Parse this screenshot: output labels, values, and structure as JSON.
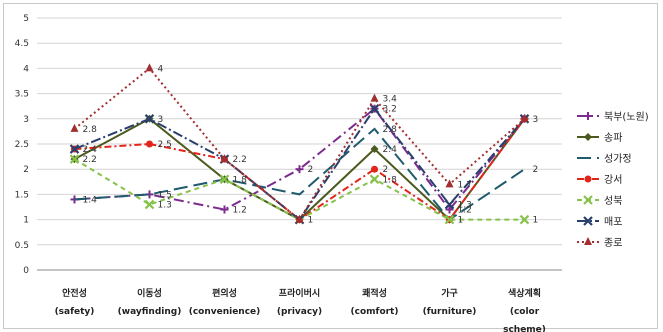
{
  "chart_data": {
    "type": "line",
    "title": "",
    "xlabel": "",
    "ylabel": "",
    "ylim": [
      0,
      5
    ],
    "yticks": [
      "0",
      "0.5",
      "1",
      "1.5",
      "2",
      "2.5",
      "3",
      "3.5",
      "4",
      "4.5",
      "5"
    ],
    "categories": [
      [
        "안전성",
        "(safety)"
      ],
      [
        "이동성",
        "(wayfinding)"
      ],
      [
        "편의성",
        "(convenience)"
      ],
      [
        "프라이버시",
        "(privacy)"
      ],
      [
        "쾌적성",
        "(comfort)"
      ],
      [
        "가구",
        "(furniture)"
      ],
      [
        "색상계획",
        "(color",
        "scheme)"
      ]
    ],
    "grid": true,
    "legend_position": "right",
    "series": [
      {
        "name": "북부(노원)",
        "values": [
          1.4,
          1.5,
          1.2,
          2,
          3.2,
          1.2,
          3
        ],
        "color": "#7b2c8e",
        "marker": "plus",
        "dash": "10,4,2,4"
      },
      {
        "name": "송파",
        "values": [
          2.2,
          3,
          1.8,
          1,
          2.4,
          1,
          3
        ],
        "color": "#4a5a1c",
        "marker": "diamond",
        "dash": ""
      },
      {
        "name": "성가정",
        "values": [
          1.4,
          1.5,
          1.8,
          1.5,
          2.8,
          1,
          2
        ],
        "color": "#1f5b6e",
        "marker": "none",
        "dash": "14,6"
      },
      {
        "name": "강서",
        "values": [
          2.4,
          2.5,
          2.2,
          1,
          2,
          1,
          3
        ],
        "color": "#e3241b",
        "marker": "circle",
        "dash": "7,3,2,3"
      },
      {
        "name": "성북",
        "values": [
          2.2,
          1.3,
          1.8,
          1,
          1.8,
          1,
          1
        ],
        "color": "#86c24a",
        "marker": "x",
        "dash": "5,4"
      },
      {
        "name": "매포",
        "values": [
          2.4,
          3,
          2.2,
          1,
          3.2,
          1.3,
          3
        ],
        "color": "#2a3f6b",
        "marker": "x",
        "dash": "10,3,2,3"
      },
      {
        "name": "종로",
        "values": [
          2.8,
          4,
          2.2,
          1,
          3.4,
          1.7,
          3
        ],
        "color": "#a12f2f",
        "marker": "triangle",
        "dash": "2,3"
      }
    ],
    "data_labels": [
      {
        "series": 0,
        "index": 0,
        "text": "1.4"
      },
      {
        "series": 1,
        "index": 0,
        "text": "2.2"
      },
      {
        "series": 5,
        "index": 0,
        "text": "2.4"
      },
      {
        "series": 6,
        "index": 0,
        "text": "2.8"
      },
      {
        "series": 0,
        "index": 1,
        "text": "1.5"
      },
      {
        "series": 4,
        "index": 1,
        "text": "1.3"
      },
      {
        "series": 3,
        "index": 1,
        "text": "2.5"
      },
      {
        "series": 5,
        "index": 1,
        "text": "3"
      },
      {
        "series": 6,
        "index": 1,
        "text": "4"
      },
      {
        "series": 0,
        "index": 2,
        "text": "1.2"
      },
      {
        "series": 4,
        "index": 2,
        "text": "1.8"
      },
      {
        "series": 6,
        "index": 2,
        "text": "2.2"
      },
      {
        "series": 0,
        "index": 3,
        "text": "2"
      },
      {
        "series": 6,
        "index": 3,
        "text": "1"
      },
      {
        "series": 4,
        "index": 4,
        "text": "1.8"
      },
      {
        "series": 3,
        "index": 4,
        "text": "2"
      },
      {
        "series": 1,
        "index": 4,
        "text": "2.4"
      },
      {
        "series": 2,
        "index": 4,
        "text": "2.8"
      },
      {
        "series": 5,
        "index": 4,
        "text": "3.2"
      },
      {
        "series": 6,
        "index": 4,
        "text": "3.4"
      },
      {
        "series": 6,
        "index": 5,
        "text": "1.7"
      },
      {
        "series": 5,
        "index": 5,
        "text": "1.3"
      },
      {
        "series": 0,
        "index": 5,
        "text": "1.2"
      },
      {
        "series": 4,
        "index": 5,
        "text": "1"
      },
      {
        "series": 2,
        "index": 6,
        "text": "2"
      },
      {
        "series": 4,
        "index": 6,
        "text": "1"
      },
      {
        "series": 6,
        "index": 6,
        "text": "3"
      }
    ]
  }
}
